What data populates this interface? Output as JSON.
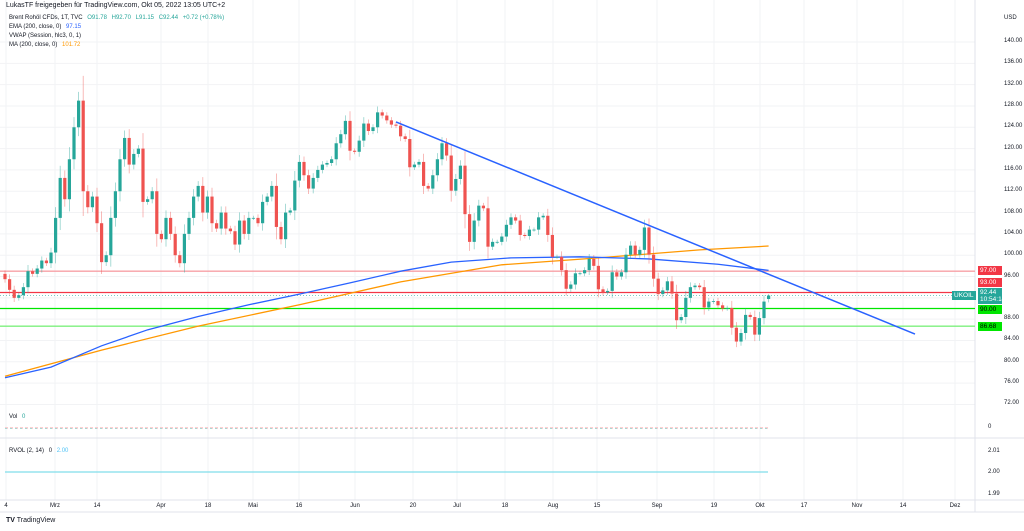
{
  "header": {
    "title": "LukasTF freigegeben für TradingView.com, Okt 05, 2022 13:05 UTC+2"
  },
  "legend": {
    "symbol": "Brent Rohöl CFDs, 1T, TVC",
    "open": "O91.78",
    "high": "H92.70",
    "low": "L91.15",
    "close": "C92.44",
    "change": "+0.72 (+0.78%)",
    "ema_label": "EMA (200, close, 0)",
    "ema_value": "97.15",
    "vwap_label": "VWAP (Session, hlc3, 0, 1)",
    "ma_label": "MA (200, close, 0)",
    "ma_value": "101.72"
  },
  "price_axis": {
    "currency": "USD",
    "ticks": [
      "140.00",
      "136.00",
      "132.00",
      "128.00",
      "124.00",
      "120.00",
      "116.00",
      "112.00",
      "108.00",
      "104.00",
      "100.00",
      "96.00",
      "88.00",
      "84.00",
      "80.00",
      "76.00",
      "72.00"
    ],
    "badges": [
      {
        "text": "97.00",
        "color": "#f23645"
      },
      {
        "text": "93.00",
        "color": "#f23645"
      },
      {
        "text": "92.44",
        "sub": "10:54:14",
        "color": "#26a69a"
      },
      {
        "text": "90.00",
        "color": "#00e600"
      },
      {
        "text": "86.68",
        "color": "#00e600"
      }
    ],
    "symbol_badge": "UKOIL"
  },
  "volume_pane": {
    "label": "Vol",
    "value": "0",
    "axis": [
      "0"
    ]
  },
  "rvol_pane": {
    "label": "RVOL (2, 14)",
    "value0": "0",
    "value": "2.00",
    "axis": [
      "2.01",
      "2.00",
      "1.99"
    ]
  },
  "time_axis": {
    "labels": [
      "4",
      "Mrz",
      "14",
      "Apr",
      "18",
      "Mai",
      "16",
      "Jun",
      "20",
      "Jul",
      "18",
      "Aug",
      "15",
      "Sep",
      "19",
      "Okt",
      "17",
      "Nov",
      "14",
      "Dez"
    ]
  },
  "footer": {
    "brand": "TradingView"
  },
  "chart_data": {
    "type": "candlestick",
    "title": "Brent Rohöl CFDs, 1T, TVC",
    "ylim": [
      70,
      142
    ],
    "colors": {
      "up": "#26a69a",
      "down": "#ef5350",
      "ema": "#2962ff",
      "ma": "#ff9800"
    },
    "last_bar": {
      "open": 91.78,
      "high": 92.7,
      "low": 91.15,
      "close": 92.44
    },
    "closes": [
      95.5,
      93.5,
      92,
      92.5,
      94,
      97,
      96.5,
      97.5,
      99,
      98.5,
      100.5,
      107,
      114.5,
      110.5,
      118,
      124,
      129,
      112,
      109,
      111,
      106,
      98.7,
      100,
      107,
      112,
      118,
      122,
      117,
      119,
      120,
      110,
      110.5,
      112,
      104,
      103,
      107,
      104,
      100,
      98.5,
      104,
      107,
      111,
      113,
      108,
      111,
      106,
      105,
      108,
      105,
      104.5,
      102,
      106.5,
      104,
      107,
      107,
      106,
      110,
      111,
      113,
      105.3,
      103,
      108,
      108.4,
      114,
      117.5,
      115,
      112.5,
      114.5,
      116,
      117,
      117.3,
      118,
      121,
      122.7,
      125.2,
      119.6,
      119.4,
      121.5,
      124.7,
      123.3,
      124,
      126.8,
      126.2,
      125.3,
      124.5,
      124.3,
      122.3,
      121.8,
      116.5,
      117,
      117.5,
      113,
      112.5,
      115,
      118,
      121,
      118.7,
      112.1,
      114.3,
      116.8,
      107.7,
      102.5,
      106.5,
      109.3,
      108.8,
      101.6,
      102.5,
      102.5,
      103.5,
      105.7,
      107.1,
      106.5,
      103.8,
      103.6,
      104.8,
      104.8,
      107.1,
      107.4,
      103.8,
      99.7,
      99.7,
      97.2,
      93.7,
      94.5,
      96.6,
      96.6,
      97.2,
      99.3,
      98,
      93.6,
      93,
      93.3,
      96.8,
      96,
      96.8,
      100.1,
      101.8,
      100.1,
      101,
      105.2,
      100.1,
      95.6,
      92.7,
      93.4,
      95.1,
      92.8,
      87.8,
      88.4,
      92,
      94,
      94.3,
      94,
      90.2,
      91.3,
      91.4,
      90.6,
      90,
      90.1,
      86.4,
      83.8,
      85.4,
      88.8,
      88.4,
      85.1,
      88.2,
      91.3,
      92.44
    ],
    "ema_200": [
      [
        0,
        77
      ],
      [
        10,
        79
      ],
      [
        21,
        83
      ],
      [
        31,
        86
      ],
      [
        42,
        88.5
      ],
      [
        53,
        90.7
      ],
      [
        64,
        92.7
      ],
      [
        75,
        94.8
      ],
      [
        86,
        97
      ],
      [
        97,
        98.7
      ],
      [
        110,
        99.5
      ],
      [
        125,
        99.7
      ],
      [
        140,
        99.3
      ],
      [
        155,
        98.3
      ],
      [
        166,
        97.15
      ]
    ],
    "ma_200": [
      [
        0,
        77.3
      ],
      [
        21,
        82.2
      ],
      [
        42,
        86.7
      ],
      [
        64,
        90.7
      ],
      [
        86,
        95
      ],
      [
        108,
        98.2
      ],
      [
        129,
        99.5
      ],
      [
        151,
        101
      ],
      [
        166,
        101.72
      ]
    ],
    "horizontal_levels": [
      {
        "price": 97.0,
        "color": "#f7a0a6"
      },
      {
        "price": 93.0,
        "color": "#f23645"
      },
      {
        "price": 90.0,
        "color": "#00e600"
      },
      {
        "price": 86.68,
        "color": "#7ef07e"
      }
    ],
    "trendline": {
      "start_price": 125,
      "end_price": 85.2,
      "color": "#2962ff"
    }
  }
}
